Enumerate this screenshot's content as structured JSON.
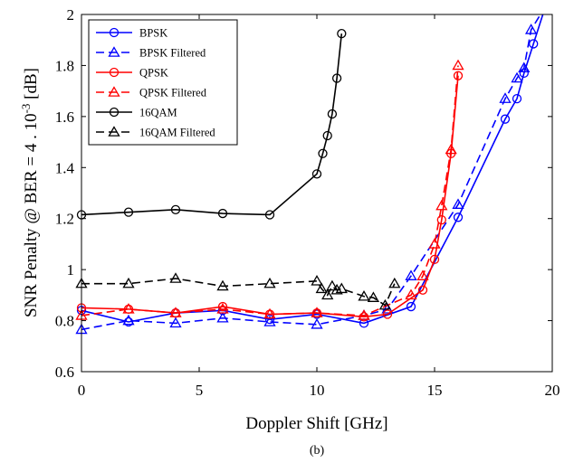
{
  "caption": "(b)",
  "chart_data": {
    "type": "line",
    "xlabel": "Doppler Shift [GHz]",
    "ylabel": "SNR Penalty @ BER = 4 . 10",
    "ylabel_exponent": "-3",
    "ylabel_unit": " [dB]",
    "xlim": [
      0,
      20
    ],
    "ylim": [
      0.6,
      2.0
    ],
    "xticks": [
      0,
      5,
      10,
      15,
      20
    ],
    "yticks": [
      0.6,
      0.8,
      1,
      1.2,
      1.4,
      1.6,
      1.8,
      2
    ],
    "ytick_labels": [
      "0.6",
      "0.8",
      "1",
      "1.2",
      "1.4",
      "1.6",
      "1.8",
      "2"
    ],
    "grid": false,
    "legend_position": "top-left",
    "series": [
      {
        "name": "BPSK",
        "color": "#0000ff",
        "dash": "solid",
        "marker": "circle",
        "x": [
          0,
          2,
          4,
          6,
          8,
          10,
          12,
          14,
          16,
          18,
          18.5,
          18.8,
          19.2,
          19.6
        ],
        "y": [
          0.84,
          0.795,
          0.83,
          0.84,
          0.805,
          0.825,
          0.79,
          0.855,
          1.205,
          1.59,
          1.67,
          1.77,
          1.885,
          2.0
        ],
        "marker_x": [
          0,
          2,
          4,
          6,
          8,
          10,
          12,
          14,
          16,
          18,
          18.5,
          18.8,
          19.2
        ],
        "marker_y": [
          0.84,
          0.795,
          0.83,
          0.84,
          0.805,
          0.825,
          0.79,
          0.855,
          1.205,
          1.59,
          1.67,
          1.77,
          1.885
        ]
      },
      {
        "name": "BPSK Filtered",
        "color": "#0000ff",
        "dash": "dashed",
        "marker": "triangle",
        "x": [
          0,
          2,
          4,
          6,
          8,
          10,
          12,
          13,
          14,
          16,
          18,
          18.5,
          18.8,
          19.1,
          19.5
        ],
        "y": [
          0.765,
          0.8,
          0.79,
          0.81,
          0.795,
          0.785,
          0.82,
          0.845,
          0.975,
          1.255,
          1.67,
          1.75,
          1.79,
          1.94,
          2.0
        ],
        "marker_x": [
          0,
          2,
          4,
          6,
          8,
          10,
          12,
          13,
          14,
          16,
          18,
          18.5,
          18.8,
          19.1
        ],
        "marker_y": [
          0.765,
          0.8,
          0.79,
          0.81,
          0.795,
          0.785,
          0.82,
          0.845,
          0.975,
          1.255,
          1.67,
          1.75,
          1.79,
          1.94
        ]
      },
      {
        "name": "QPSK",
        "color": "#ff0000",
        "dash": "solid",
        "marker": "circle",
        "x": [
          0,
          2,
          4,
          6,
          8,
          10,
          12,
          13,
          14.5,
          15,
          15.3,
          15.7,
          16
        ],
        "y": [
          0.85,
          0.845,
          0.83,
          0.855,
          0.825,
          0.83,
          0.815,
          0.825,
          0.92,
          1.04,
          1.195,
          1.455,
          1.76
        ],
        "marker_x": [
          0,
          2,
          4,
          6,
          8,
          10,
          12,
          13,
          14.5,
          15,
          15.3,
          15.7,
          16
        ],
        "marker_y": [
          0.85,
          0.845,
          0.83,
          0.855,
          0.825,
          0.83,
          0.815,
          0.825,
          0.92,
          1.04,
          1.195,
          1.455,
          1.76
        ]
      },
      {
        "name": "QPSK Filtered",
        "color": "#ff0000",
        "dash": "dashed",
        "marker": "triangle",
        "x": [
          0,
          2,
          4,
          6,
          8,
          10,
          12,
          14,
          14.5,
          15,
          15.3,
          15.7,
          16
        ],
        "y": [
          0.82,
          0.845,
          0.83,
          0.845,
          0.825,
          0.83,
          0.82,
          0.9,
          0.975,
          1.1,
          1.25,
          1.47,
          1.8
        ],
        "marker_x": [
          0,
          2,
          4,
          6,
          8,
          10,
          12,
          14,
          14.5,
          15,
          15.3,
          15.7,
          16
        ],
        "marker_y": [
          0.82,
          0.845,
          0.83,
          0.845,
          0.825,
          0.83,
          0.82,
          0.9,
          0.975,
          1.1,
          1.25,
          1.47,
          1.8
        ]
      },
      {
        "name": "16QAM",
        "color": "#000000",
        "dash": "solid",
        "marker": "circle",
        "x": [
          0,
          2,
          4,
          6,
          8,
          10,
          10.25,
          10.45,
          10.65,
          10.85,
          11.05
        ],
        "y": [
          1.215,
          1.225,
          1.235,
          1.22,
          1.215,
          1.375,
          1.455,
          1.525,
          1.61,
          1.75,
          1.925
        ],
        "marker_x": [
          0,
          2,
          4,
          6,
          8,
          10,
          10.25,
          10.45,
          10.65,
          10.85,
          11.05
        ],
        "marker_y": [
          1.215,
          1.225,
          1.235,
          1.22,
          1.215,
          1.375,
          1.455,
          1.525,
          1.61,
          1.75,
          1.925
        ]
      },
      {
        "name": "16QAM Filtered",
        "color": "#000000",
        "dash": "dashed",
        "marker": "triangle",
        "x": [
          0,
          2,
          4,
          6,
          8,
          10,
          10.2,
          10.45,
          10.65,
          10.85,
          11.05,
          12,
          12.4,
          12.9,
          13.3
        ],
        "y": [
          0.945,
          0.945,
          0.965,
          0.935,
          0.945,
          0.955,
          0.925,
          0.9,
          0.935,
          0.92,
          0.925,
          0.895,
          0.89,
          0.86,
          0.945
        ],
        "marker_x": [
          0,
          2,
          4,
          6,
          8,
          10,
          10.2,
          10.45,
          10.65,
          10.85,
          11.05,
          12,
          12.4,
          12.9,
          13.3
        ],
        "marker_y": [
          0.945,
          0.945,
          0.965,
          0.935,
          0.945,
          0.955,
          0.925,
          0.9,
          0.935,
          0.92,
          0.925,
          0.895,
          0.89,
          0.86,
          0.945
        ]
      }
    ]
  }
}
